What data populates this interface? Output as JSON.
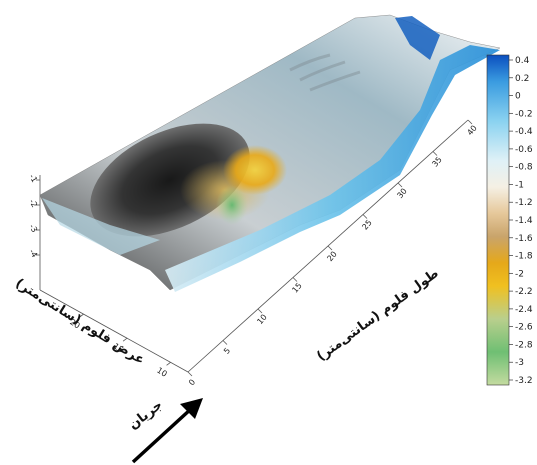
{
  "chart_data": {
    "type": "surface",
    "title": "",
    "xlabel": "طول فلوم (سانتی‌متر)",
    "ylabel": "عرض فلوم (سانتی‌متر)",
    "zlabel": "",
    "x_ticks": [
      0,
      5,
      10,
      15,
      20,
      25,
      30,
      35,
      40
    ],
    "y_ticks": [
      10,
      15,
      20
    ],
    "z_ticks": [
      "-1",
      "-2",
      "-3",
      "-4"
    ],
    "xlim": [
      0,
      40
    ],
    "ylim": [
      8,
      25
    ],
    "flow_label": "جریان",
    "colorbar": {
      "ticks": [
        "0.4",
        "0.2",
        "0",
        "-0.2",
        "-0.4",
        "-0.6",
        "-0.8",
        "-1",
        "-1.2",
        "-1.4",
        "-1.6",
        "-1.8",
        "-2",
        "-2.2",
        "-2.4",
        "-2.6",
        "-2.8",
        "-3",
        "-3.2"
      ],
      "range": [
        -3.3,
        0.5
      ],
      "colors": [
        "#0b4fbf",
        "#3a9be0",
        "#8ad2f0",
        "#dff1f7",
        "#f5f0e4",
        "#e6c89a",
        "#c9a46b",
        "#e5a81a",
        "#f0c020",
        "#b9cf8d",
        "#6fbf73",
        "#c4dba0"
      ]
    },
    "surface_description_values": {
      "max_elevation": 0.4,
      "min_elevation": -3.2,
      "scour_hole_center_x": 8
    }
  }
}
